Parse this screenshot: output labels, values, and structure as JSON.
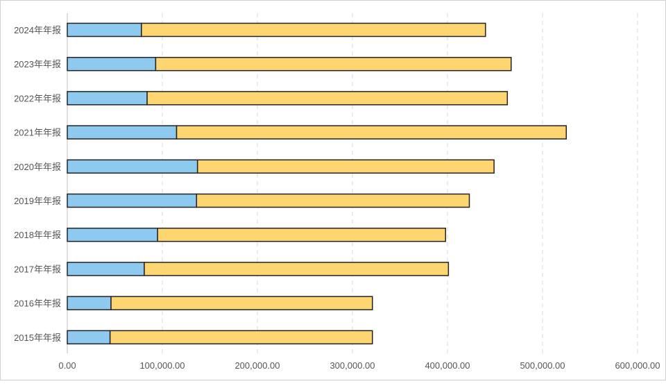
{
  "chart_data": {
    "type": "bar",
    "orientation": "horizontal",
    "stacked": true,
    "categories": [
      "2024年年报",
      "2023年年报",
      "2022年年报",
      "2021年年报",
      "2020年年报",
      "2019年年报",
      "2018年年报",
      "2017年年报",
      "2016年年报",
      "2015年年报"
    ],
    "series": [
      {
        "values": [
          78000,
          93000,
          84000,
          115000,
          137000,
          136000,
          95000,
          81000,
          46000,
          45000
        ]
      },
      {
        "values": [
          362000,
          374000,
          379000,
          410000,
          312000,
          287000,
          303000,
          320000,
          275000,
          276000
        ]
      }
    ],
    "series_colors": [
      "#8ec9ef",
      "#fdd672"
    ],
    "bar_outline_color": "#222222",
    "xlim": [
      0,
      600000
    ],
    "x_ticks": [
      0,
      100000,
      200000,
      300000,
      400000,
      500000,
      600000
    ],
    "x_tick_labels": [
      "0.00",
      "100,000.00",
      "200,000.00",
      "300,000.00",
      "400,000.00",
      "500,000.00",
      "600,000.00"
    ],
    "grid": "vertical-dashed",
    "legend": "none",
    "title": "",
    "xlabel": "",
    "ylabel": ""
  }
}
